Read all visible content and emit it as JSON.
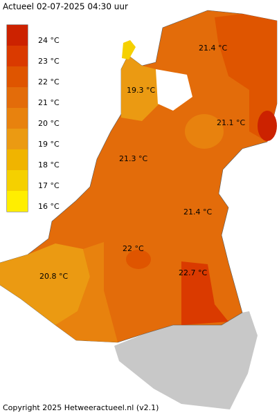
{
  "header": {
    "title": "Actueel 02-07-2025  04:30 uur"
  },
  "legend": [
    {
      "label": "24 °C",
      "color": "#cc2200"
    },
    {
      "label": "23 °C",
      "color": "#da3a00"
    },
    {
      "label": "22 °C",
      "color": "#df5500"
    },
    {
      "label": "21 °C",
      "color": "#e36c0a"
    },
    {
      "label": "20 °C",
      "color": "#e8820e"
    },
    {
      "label": "19 °C",
      "color": "#eb9a12"
    },
    {
      "label": "18 °C",
      "color": "#f0b400"
    },
    {
      "label": "17 °C",
      "color": "#f5d000"
    },
    {
      "label": "16 °C",
      "color": "#ffee00"
    }
  ],
  "map": {
    "labels": [
      "21.4 °C",
      "19.3 °C",
      "21.1 °C",
      "21.3 °C",
      "21.4 °C",
      "22 °C",
      "20.8 °C",
      "22.7 °C"
    ]
  },
  "footer": {
    "copyright": "Copyright 2025 Hetweeractueel.nl (v2.1)"
  }
}
